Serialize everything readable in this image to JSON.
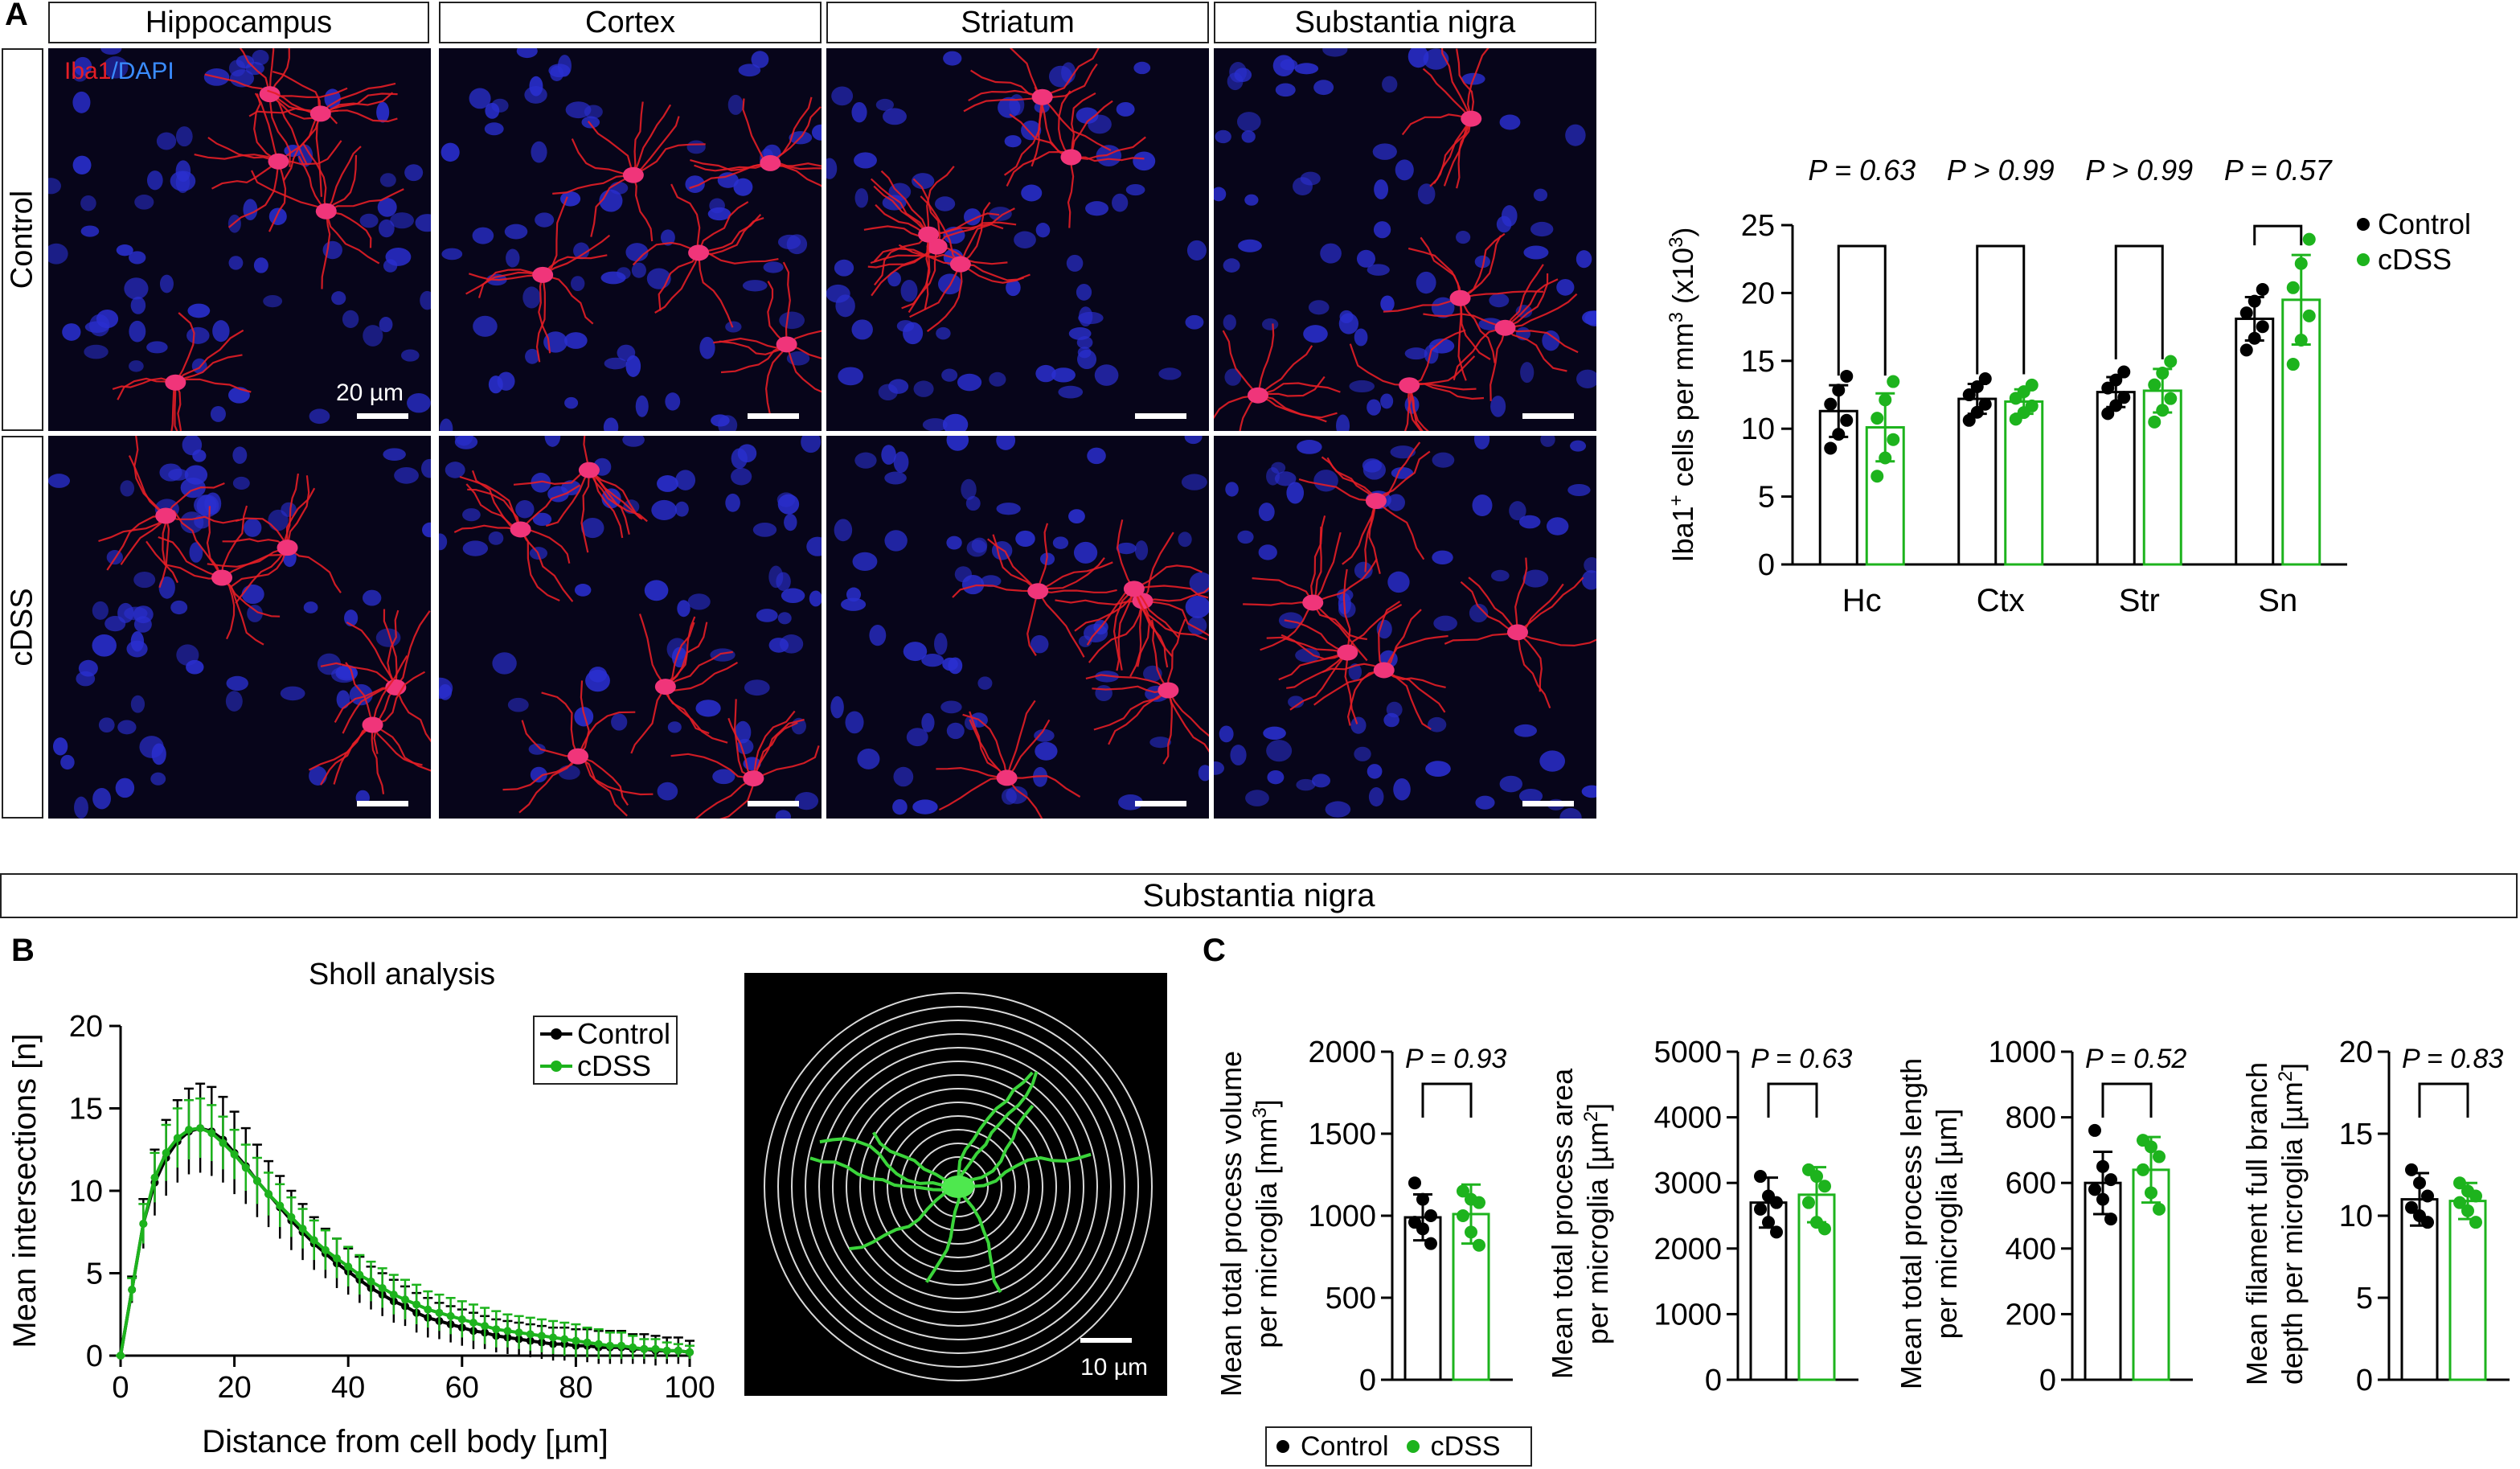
{
  "panels": {
    "A": "A",
    "B": "B",
    "C": "C"
  },
  "regions": [
    "Hippocampus",
    "Cortex",
    "Striatum",
    "Substantia nigra"
  ],
  "conditions": [
    "Control",
    "cDSS"
  ],
  "stain": {
    "iba1": "Iba1",
    "sep": "/",
    "dapi": "DAPI"
  },
  "scale_bars": {
    "panel_a": "20 µm",
    "sholl_image": "10 µm"
  },
  "banner": "Substantia nigra",
  "colors": {
    "control": "#000000",
    "cdss": "#1db31d",
    "iba1": "#e41e26",
    "dapi": "#2a3cff"
  },
  "chart_data": [
    {
      "id": "iba1-density",
      "type": "bar",
      "categories": [
        "Hc",
        "Ctx",
        "Str",
        "Sn"
      ],
      "ylabel_main": "Iba1",
      "ylabel_sup1": "+",
      "ylabel_mid": " cells per mm",
      "ylabel_sup2": "3",
      "ylabel_mid2": " (x10",
      "ylabel_sup3": "3",
      "ylabel_end": ")",
      "ylim": [
        0,
        25
      ],
      "yticks": [
        0,
        5,
        10,
        15,
        20,
        25
      ],
      "legend": "top-right",
      "series": [
        {
          "name": "Control",
          "values": [
            11.3,
            12.2,
            12.7,
            18.1
          ],
          "sd": [
            1.9,
            1.1,
            1.1,
            1.6
          ]
        },
        {
          "name": "cDSS",
          "values": [
            10.1,
            12.0,
            12.8,
            19.5
          ],
          "sd": [
            2.5,
            0.9,
            1.6,
            3.3
          ]
        }
      ],
      "pvalues": [
        "P = 0.63",
        "P > 0.99",
        "P > 0.99",
        "P = 0.57"
      ]
    },
    {
      "id": "sholl",
      "type": "line",
      "title": "Sholl analysis",
      "xlabel": "Distance from cell body [µm]",
      "ylabel": "Mean intersections [n]",
      "xlim": [
        0,
        100
      ],
      "ylim": [
        0,
        20
      ],
      "xticks": [
        0,
        20,
        40,
        60,
        80,
        100
      ],
      "yticks": [
        0,
        5,
        10,
        15,
        20
      ],
      "legend": "top-right",
      "x": [
        0,
        2,
        4,
        6,
        8,
        10,
        12,
        14,
        16,
        18,
        20,
        22,
        24,
        26,
        28,
        30,
        32,
        34,
        36,
        38,
        40,
        42,
        44,
        46,
        48,
        50,
        52,
        54,
        56,
        58,
        60,
        62,
        64,
        66,
        68,
        70,
        72,
        74,
        76,
        78,
        80,
        82,
        84,
        86,
        88,
        90,
        92,
        94,
        96,
        98,
        100
      ],
      "series": [
        {
          "name": "Control",
          "values": [
            0,
            4,
            8,
            10.5,
            12,
            13,
            13.6,
            13.8,
            13.6,
            13.1,
            12.3,
            11.5,
            10.6,
            9.8,
            9,
            8.2,
            7.5,
            6.8,
            6.2,
            5.6,
            5.1,
            4.6,
            4.1,
            3.7,
            3.3,
            3,
            2.6,
            2.3,
            2.1,
            1.9,
            1.7,
            1.5,
            1.4,
            1.2,
            1.1,
            1,
            0.9,
            0.8,
            0.7,
            0.7,
            0.6,
            0.6,
            0.5,
            0.5,
            0.5,
            0.4,
            0.4,
            0.3,
            0.3,
            0.3,
            0.2
          ],
          "sd": [
            0,
            0.8,
            1.5,
            2,
            2.3,
            2.5,
            2.6,
            2.7,
            2.7,
            2.6,
            2.5,
            2.3,
            2.2,
            2,
            1.9,
            1.8,
            1.7,
            1.6,
            1.5,
            1.5,
            1.4,
            1.4,
            1.3,
            1.3,
            1.3,
            1.2,
            1.2,
            1.2,
            1.1,
            1.1,
            1.1,
            1.1,
            1,
            1,
            1,
            1,
            1,
            1,
            1,
            1,
            1,
            1,
            1,
            1,
            1,
            0.9,
            0.9,
            0.9,
            0.8,
            0.8,
            0.7
          ]
        },
        {
          "name": "cDSS",
          "values": [
            0,
            4,
            8,
            10.8,
            12.3,
            13.2,
            13.7,
            13.8,
            13.5,
            12.9,
            12.2,
            11.4,
            10.6,
            9.8,
            9.1,
            8.4,
            7.7,
            7,
            6.4,
            5.9,
            5.4,
            4.9,
            4.5,
            4.1,
            3.7,
            3.4,
            3.1,
            2.8,
            2.6,
            2.4,
            2.2,
            2,
            1.8,
            1.6,
            1.5,
            1.4,
            1.3,
            1.2,
            1.1,
            1,
            0.9,
            0.8,
            0.7,
            0.6,
            0.6,
            0.5,
            0.4,
            0.4,
            0.3,
            0.3,
            0.2
          ],
          "sd": [
            0,
            0.7,
            1.2,
            1.5,
            1.7,
            1.8,
            1.8,
            1.8,
            1.7,
            1.6,
            1.5,
            1.4,
            1.4,
            1.3,
            1.3,
            1.2,
            1.2,
            1.2,
            1.2,
            1.2,
            1.2,
            1.2,
            1.2,
            1.2,
            1.2,
            1.2,
            1.2,
            1.1,
            1.1,
            1.1,
            1.1,
            1.1,
            1.1,
            1.1,
            1,
            1,
            1,
            1,
            1,
            1,
            1,
            0.9,
            0.9,
            0.8,
            0.8,
            0.7,
            0.6,
            0.6,
            0.5,
            0.4,
            0.4
          ]
        }
      ]
    },
    {
      "id": "volume",
      "type": "bar",
      "ylabel_lines": [
        "Mean total process volume",
        "per microglia [mm",
        "3",
        "]"
      ],
      "ylim": [
        0,
        2000
      ],
      "yticks": [
        0,
        500,
        1000,
        1500,
        2000
      ],
      "pvalue": "P = 0.93",
      "series": [
        {
          "name": "Control",
          "value": 990,
          "sd": 140,
          "points": [
            1200,
            1100,
            1000,
            960,
            920,
            830
          ]
        },
        {
          "name": "cDSS",
          "value": 1010,
          "sd": 180,
          "points": [
            1150,
            1100,
            1080,
            1000,
            900,
            820
          ]
        }
      ]
    },
    {
      "id": "area",
      "type": "bar",
      "ylabel_lines": [
        "Mean total process area",
        "per microglia [µm",
        "2",
        "]"
      ],
      "ylim": [
        0,
        5000
      ],
      "yticks": [
        0,
        1000,
        2000,
        3000,
        4000,
        5000
      ],
      "pvalue": "P = 0.63",
      "series": [
        {
          "name": "Control",
          "value": 2700,
          "sd": 380,
          "points": [
            3100,
            2800,
            2700,
            2600,
            2400,
            2250
          ]
        },
        {
          "name": "cDSS",
          "value": 2820,
          "sd": 420,
          "points": [
            3200,
            3100,
            2950,
            2700,
            2400,
            2300
          ]
        }
      ]
    },
    {
      "id": "length",
      "type": "bar",
      "ylabel_lines": [
        "Mean total process length",
        "per microglia [µm]"
      ],
      "ylim": [
        0,
        1000
      ],
      "yticks": [
        0,
        200,
        400,
        600,
        800,
        1000
      ],
      "pvalue": "P = 0.52",
      "series": [
        {
          "name": "Control",
          "value": 600,
          "sd": 95,
          "points": [
            760,
            650,
            610,
            580,
            550,
            490
          ]
        },
        {
          "name": "cDSS",
          "value": 640,
          "sd": 100,
          "points": [
            730,
            710,
            680,
            640,
            570,
            520
          ]
        }
      ]
    },
    {
      "id": "depth",
      "type": "bar",
      "ylabel_lines": [
        "Mean filament full branch",
        "depth per microglia [µm",
        "2",
        "]"
      ],
      "ylim": [
        0,
        20
      ],
      "yticks": [
        0,
        5,
        10,
        15,
        20
      ],
      "pvalue": "P = 0.83",
      "series": [
        {
          "name": "Control",
          "value": 11,
          "sd": 1.6,
          "points": [
            12.8,
            12,
            11.2,
            10.5,
            10,
            9.6
          ]
        },
        {
          "name": "cDSS",
          "value": 10.9,
          "sd": 1.1,
          "points": [
            12,
            11.5,
            11.2,
            10.8,
            10.3,
            9.6
          ]
        }
      ]
    }
  ],
  "legend_labels": {
    "control": "Control",
    "cdss": "cDSS"
  }
}
